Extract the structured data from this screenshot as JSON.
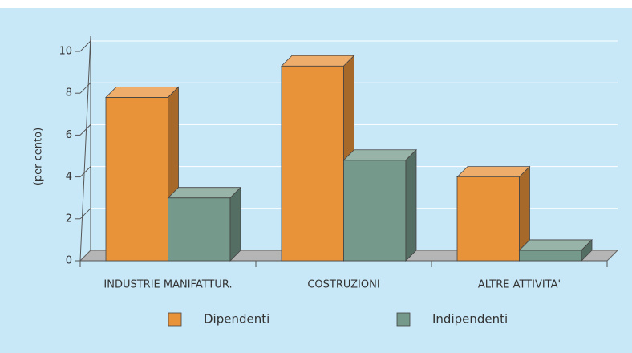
{
  "chart_data": {
    "type": "bar3d",
    "y_label": "(per cento)",
    "categories": [
      "INDUSTRIE MANIFATTUR.",
      "COSTRUZIONI",
      "ALTRE ATTIVITA'"
    ],
    "series": [
      {
        "name": "Dipendenti",
        "color": "#e8923a",
        "values": [
          7.8,
          9.3,
          4.0
        ]
      },
      {
        "name": "Indipendenti",
        "color": "#75998a",
        "values": [
          3.0,
          4.8,
          0.5
        ]
      }
    ],
    "ylim": [
      0,
      10
    ],
    "yticks": [
      0,
      2,
      4,
      6,
      8,
      10
    ],
    "grid": true
  }
}
